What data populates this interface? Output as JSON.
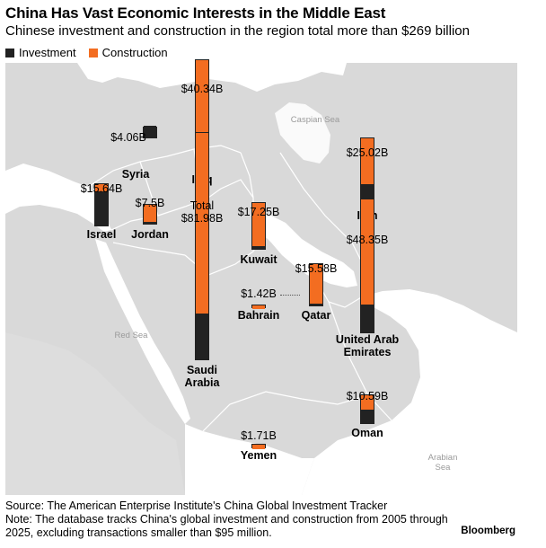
{
  "title": "China Has Vast Economic Interests in the Middle East",
  "subtitle": "Chinese investment and construction in the region total more than $269 billion",
  "legend": {
    "investment": {
      "label": "Investment",
      "color": "#222222"
    },
    "construction": {
      "label": "Construction",
      "color": "#f36d21"
    }
  },
  "seas": {
    "caspian": "Caspian Sea",
    "red": "Red Sea",
    "arabian": "Arabian Sea"
  },
  "countries": [
    {
      "key": "syria",
      "name": "Syria",
      "total_label": "$4.06B",
      "total": 4.06,
      "investment_share": 1.0
    },
    {
      "key": "iraq",
      "name": "Iraq",
      "total_label": "$40.34B",
      "total": 40.34,
      "investment_share": 0.27
    },
    {
      "key": "israel",
      "name": "Israel",
      "total_label": "$15.64B",
      "total": 15.64,
      "investment_share": 0.78
    },
    {
      "key": "jordan",
      "name": "Jordan",
      "total_label": "$7.5B",
      "total": 7.5,
      "investment_share": 0.1
    },
    {
      "key": "saudi",
      "name": "Saudi Arabia",
      "total_label": "$81.98B",
      "total_prefix": "Total",
      "total": 81.98,
      "investment_share": 0.2
    },
    {
      "key": "kuwait",
      "name": "Kuwait",
      "total_label": "$17.25B",
      "total": 17.25,
      "investment_share": 0.06
    },
    {
      "key": "iran",
      "name": "Iran",
      "total_label": "$25.02B",
      "total": 25.02,
      "investment_share": 0.32
    },
    {
      "key": "bahrain",
      "name": "Bahrain",
      "total_label": "$1.42B",
      "total": 1.42,
      "investment_share": 0.0
    },
    {
      "key": "qatar",
      "name": "Qatar",
      "total_label": "$15.58B",
      "total": 15.58,
      "investment_share": 0.04
    },
    {
      "key": "uae",
      "name": "United Arab Emirates",
      "total_label": "$48.35B",
      "total": 48.35,
      "investment_share": 0.21
    },
    {
      "key": "oman",
      "name": "Oman",
      "total_label": "$10.59B",
      "total": 10.59,
      "investment_share": 0.45
    },
    {
      "key": "yemen",
      "name": "Yemen",
      "total_label": "$1.71B",
      "total": 1.71,
      "investment_share": 0.0
    }
  ],
  "footer": {
    "source": "Source: The American Enterprise Institute's China Global Investment Tracker",
    "note": "Note: The database tracks China's global investment and construction from 2005 through 2025, excluding transactions smaller than $95 million.",
    "brand": "Bloomberg"
  }
}
